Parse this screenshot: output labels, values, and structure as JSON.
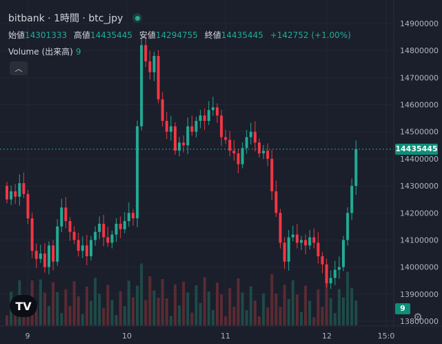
{
  "legend": {
    "title": "bitbank · 1時間 · btc_jpy",
    "open_label": "始値",
    "open": "14301333",
    "high_label": "高値",
    "high": "14435445",
    "low_label": "安値",
    "low": "14294755",
    "close_label": "終値",
    "close": "14435445",
    "change": "+142752 (+1.00%)",
    "volume_label": "Volume (出来高)",
    "volume_value": "9",
    "collapse_icon": "chevron-up-icon"
  },
  "price_axis": {
    "current_price": "14435445",
    "current_volume": "9"
  },
  "colors": {
    "up": "#22ab94",
    "down": "#f23645",
    "background": "#1a1f2b"
  },
  "chart_data": {
    "type": "candlestick",
    "y_ticks": [
      "14900000",
      "14800000",
      "14700000",
      "14600000",
      "14500000",
      "14400000",
      "14300000",
      "14200000",
      "14100000",
      "14000000",
      "13900000",
      "13800000"
    ],
    "x_ticks": [
      "9",
      "10",
      "11",
      "12",
      "15:0"
    ],
    "ylim": [
      13800000,
      14900000
    ],
    "last_price_line": 14435445
  }
}
